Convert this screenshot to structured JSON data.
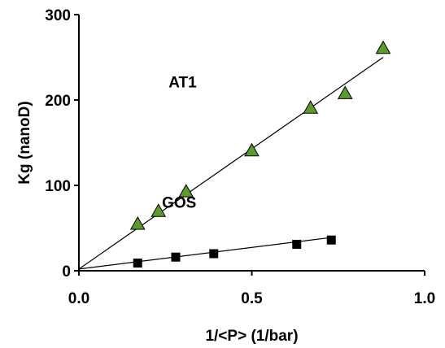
{
  "chart_data": {
    "type": "scatter",
    "title": "",
    "xlabel": "1/<P> (1/bar)",
    "ylabel": "Kg (nanoD)",
    "xlim": [
      0,
      1.0
    ],
    "ylim": [
      0,
      300
    ],
    "x_ticks": [
      0.0,
      0.5,
      1.0
    ],
    "x_tick_labels": [
      "0.0",
      "0.5",
      "1.0"
    ],
    "y_ticks": [
      0,
      100,
      200,
      300
    ],
    "y_tick_labels": [
      "0",
      "100",
      "200",
      "300"
    ],
    "grid": false,
    "legend": "none",
    "series": [
      {
        "name": "AT1",
        "marker": "triangle",
        "color": "#5c9a2e",
        "points": [
          {
            "x": 0.17,
            "y": 54
          },
          {
            "x": 0.23,
            "y": 69
          },
          {
            "x": 0.31,
            "y": 92
          },
          {
            "x": 0.5,
            "y": 140
          },
          {
            "x": 0.67,
            "y": 190
          },
          {
            "x": 0.77,
            "y": 207
          },
          {
            "x": 0.88,
            "y": 260
          }
        ],
        "fit": {
          "x": [
            0.0,
            0.88
          ],
          "y": [
            2,
            250
          ]
        }
      },
      {
        "name": "GOS",
        "marker": "square",
        "color": "#000000",
        "points": [
          {
            "x": 0.17,
            "y": 9
          },
          {
            "x": 0.28,
            "y": 16
          },
          {
            "x": 0.39,
            "y": 20
          },
          {
            "x": 0.63,
            "y": 31
          },
          {
            "x": 0.73,
            "y": 36
          }
        ],
        "fit": {
          "x": [
            0.0,
            0.73
          ],
          "y": [
            2,
            39
          ]
        }
      }
    ],
    "annotations": [
      {
        "text": "AT1",
        "x": 0.3,
        "y": 215
      },
      {
        "text": "GOS",
        "x": 0.29,
        "y": 74
      }
    ]
  }
}
